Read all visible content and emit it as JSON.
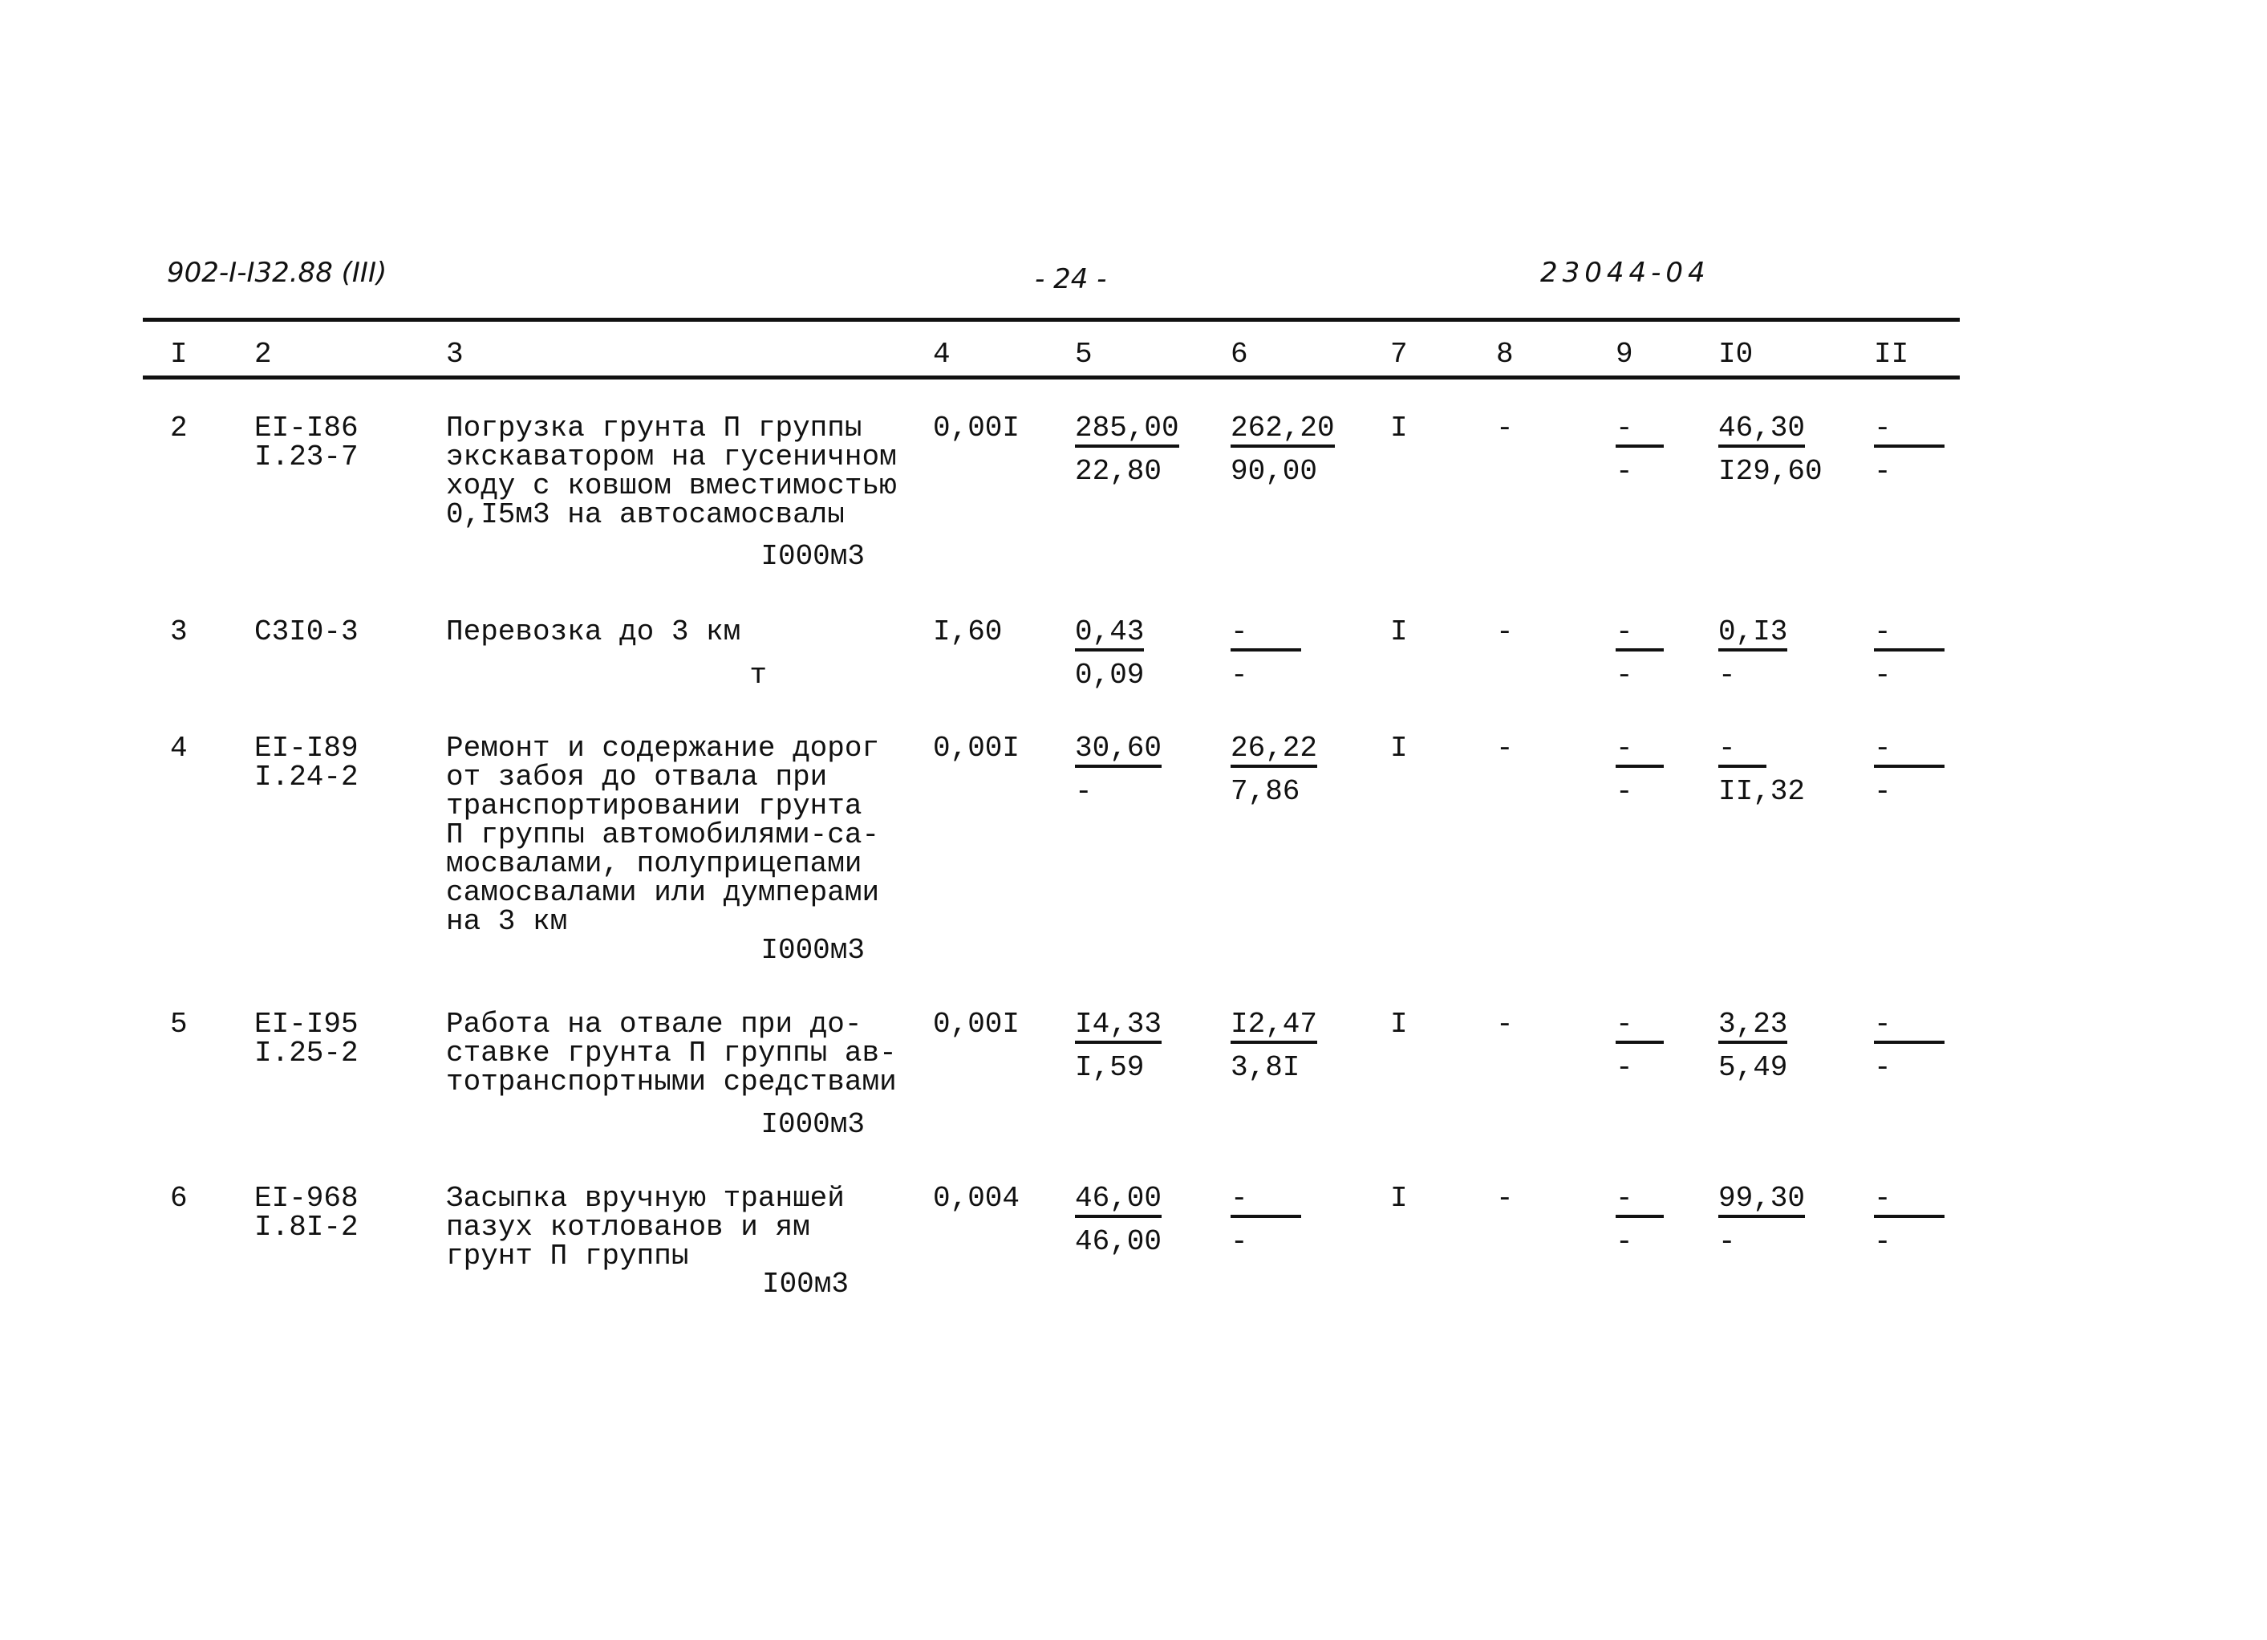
{
  "header": {
    "doc_code": "902-I-I32.88 (III)",
    "page": "- 24 -",
    "inventory": "23044-04"
  },
  "columns": [
    "I",
    "2",
    "3",
    "4",
    "5",
    "6",
    "7",
    "8",
    "9",
    "I0",
    "II"
  ],
  "rows": [
    {
      "num": "2",
      "code": [
        "EI-I86",
        "I.23-7"
      ],
      "desc": [
        "Погрузка грунта П группы",
        "экскаватором на гусеничном",
        "ходу с ковшом вместимостью",
        "0,I5м3 на автосамосвалы"
      ],
      "unit": "I000м3",
      "c4": "0,00I",
      "c5": {
        "top": "285,00",
        "bottom": "22,80"
      },
      "c6": {
        "top": "262,20",
        "bottom": "90,00"
      },
      "c7": "I",
      "c8": "-",
      "c9": {
        "top": "-",
        "bottom": "-"
      },
      "c10": {
        "top": "46,30",
        "bottom": "I29,60"
      },
      "c11": {
        "top": "-",
        "bottom": "-"
      }
    },
    {
      "num": "3",
      "code": [
        "C3I0-3",
        ""
      ],
      "desc": [
        "Перевозка до 3 км"
      ],
      "unit": "т",
      "c4": "I,60",
      "c5": {
        "top": "0,43",
        "bottom": "0,09"
      },
      "c6": {
        "top": "-",
        "bottom": "-"
      },
      "c7": "I",
      "c8": "-",
      "c9": {
        "top": "-",
        "bottom": "-"
      },
      "c10": {
        "top": "0,I3",
        "bottom": "-"
      },
      "c11": {
        "top": "-",
        "bottom": "-"
      }
    },
    {
      "num": "4",
      "code": [
        "EI-I89",
        "I.24-2"
      ],
      "desc": [
        "Ремонт и содержание дорог",
        "от забоя до отвала при",
        "транспортировании грунта",
        "П группы автомобилями-са-",
        "мосвалами, полуприцепами",
        "самосвалами или думперами",
        "на 3 км"
      ],
      "unit": "I000м3",
      "c4": "0,00I",
      "c5": {
        "top": "30,60",
        "bottom": "-"
      },
      "c6": {
        "top": "26,22",
        "bottom": "7,86"
      },
      "c7": "I",
      "c8": "-",
      "c9": {
        "top": "-",
        "bottom": "-"
      },
      "c10": {
        "top": "-",
        "bottom": "II,32"
      },
      "c11": {
        "top": "-",
        "bottom": "-"
      }
    },
    {
      "num": "5",
      "code": [
        "EI-I95",
        "I.25-2"
      ],
      "desc": [
        "Работа на отвале при до-",
        "ставке грунта П группы ав-",
        "тотранспортными средствами"
      ],
      "unit": "I000м3",
      "c4": "0,00I",
      "c5": {
        "top": "I4,33",
        "bottom": "I,59"
      },
      "c6": {
        "top": "I2,47",
        "bottom": "3,8I"
      },
      "c7": "I",
      "c8": "-",
      "c9": {
        "top": "-",
        "bottom": "-"
      },
      "c10": {
        "top": "3,23",
        "bottom": "5,49"
      },
      "c11": {
        "top": "-",
        "bottom": "-"
      }
    },
    {
      "num": "6",
      "code": [
        "EI-968",
        "I.8I-2"
      ],
      "desc": [
        "Засыпка вручную траншей",
        "пазух котлованов и ям",
        "грунт П группы"
      ],
      "unit": "I00м3",
      "c4": "0,004",
      "c5": {
        "top": "46,00",
        "bottom": "46,00"
      },
      "c6": {
        "top": "-",
        "bottom": "-"
      },
      "c7": "I",
      "c8": "-",
      "c9": {
        "top": "-",
        "bottom": "-"
      },
      "c10": {
        "top": "99,30",
        "bottom": "-"
      },
      "c11": {
        "top": "-",
        "bottom": "-"
      }
    }
  ]
}
